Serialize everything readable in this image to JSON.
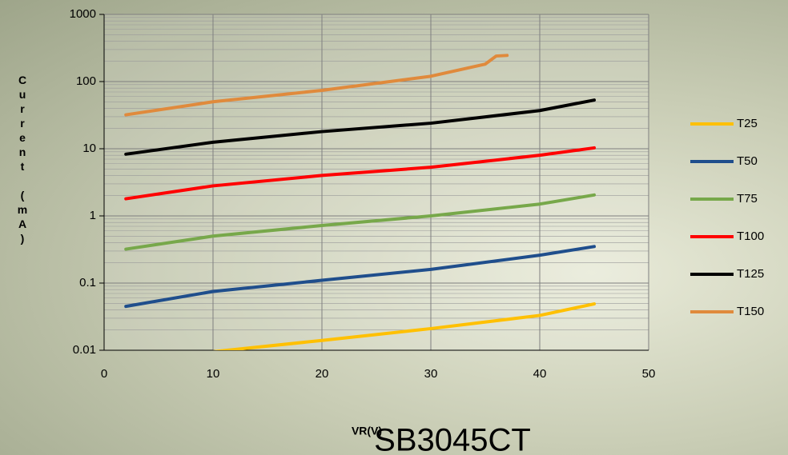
{
  "chart_data": {
    "type": "line",
    "title": "SB3045CT",
    "x_label": "VR(V)",
    "y_label": "Current (mA)",
    "xlim": [
      0,
      50
    ],
    "xticks": [
      0,
      10,
      20,
      30,
      40,
      50
    ],
    "ylim": [
      0.01,
      1000
    ],
    "yticks": [
      0.01,
      0.1,
      1,
      10,
      100,
      1000
    ],
    "log_y": true,
    "grid": true,
    "minor_grid": true,
    "legend": "right",
    "series": [
      {
        "name": "T25",
        "color": "#ffc000",
        "x": [
          8,
          10,
          20,
          30,
          40,
          45
        ],
        "values": [
          0.009,
          0.0095,
          0.014,
          0.021,
          0.033,
          0.049
        ]
      },
      {
        "name": "T50",
        "color": "#1f4e8c",
        "x": [
          2,
          10,
          20,
          30,
          40,
          45
        ],
        "values": [
          0.045,
          0.075,
          0.11,
          0.16,
          0.26,
          0.35
        ]
      },
      {
        "name": "T75",
        "color": "#77a84a",
        "x": [
          2,
          10,
          20,
          30,
          40,
          45
        ],
        "values": [
          0.32,
          0.5,
          0.72,
          1.0,
          1.5,
          2.05
        ]
      },
      {
        "name": "T100",
        "color": "#ff0000",
        "x": [
          2,
          10,
          20,
          30,
          40,
          45
        ],
        "values": [
          1.8,
          2.8,
          4,
          5.3,
          8,
          10.3
        ]
      },
      {
        "name": "T125",
        "color": "#000000",
        "x": [
          2,
          10,
          20,
          30,
          40,
          45
        ],
        "values": [
          8.3,
          12.5,
          18,
          24,
          37,
          53
        ]
      },
      {
        "name": "T150",
        "color": "#e08a3c",
        "x": [
          2,
          10,
          20,
          30,
          35,
          36,
          37
        ],
        "values": [
          32,
          50,
          74,
          120,
          182,
          240,
          245
        ]
      }
    ]
  }
}
